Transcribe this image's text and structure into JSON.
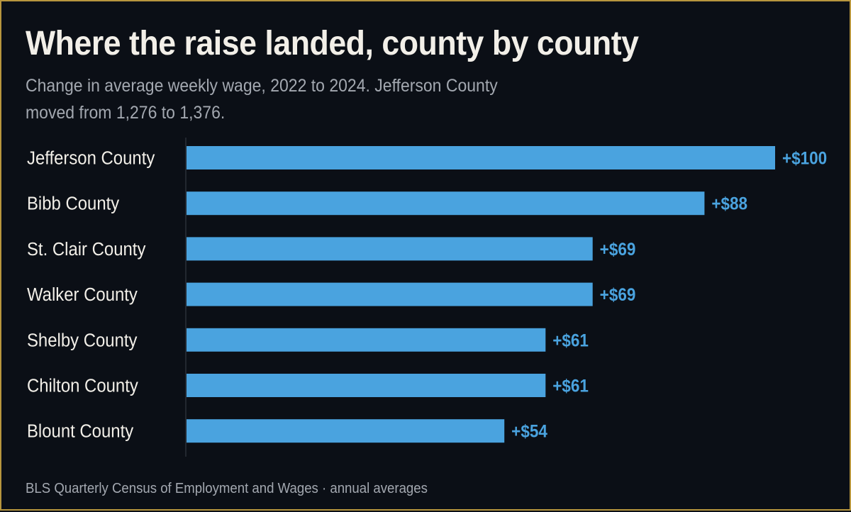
{
  "header": {
    "title": "Where the raise landed, county by county",
    "subtitle": "Change in average weekly wage, 2022 to 2024. Jefferson County moved from 1,276 to 1,376."
  },
  "footer": {
    "source": "BLS Quarterly Census of Employment and Wages · annual averages"
  },
  "colors": {
    "background": "#0b0f16",
    "bar": "#4aa3df",
    "value_label": "#4aa3df",
    "category_label": "#f2efe8",
    "axis": "#3a3f48",
    "border": "#b8963e"
  },
  "chart_data": {
    "type": "bar",
    "orientation": "horizontal",
    "categories": [
      "Jefferson County",
      "Bibb County",
      "St. Clair County",
      "Walker County",
      "Shelby County",
      "Chilton County",
      "Blount County"
    ],
    "values": [
      100,
      88,
      69,
      69,
      61,
      61,
      54
    ],
    "value_labels": [
      "+$100",
      "+$88",
      "+$69",
      "+$69",
      "+$61",
      "+$61",
      "+$54"
    ],
    "xlim": [
      0,
      100
    ],
    "grid": false,
    "legend": "none"
  }
}
